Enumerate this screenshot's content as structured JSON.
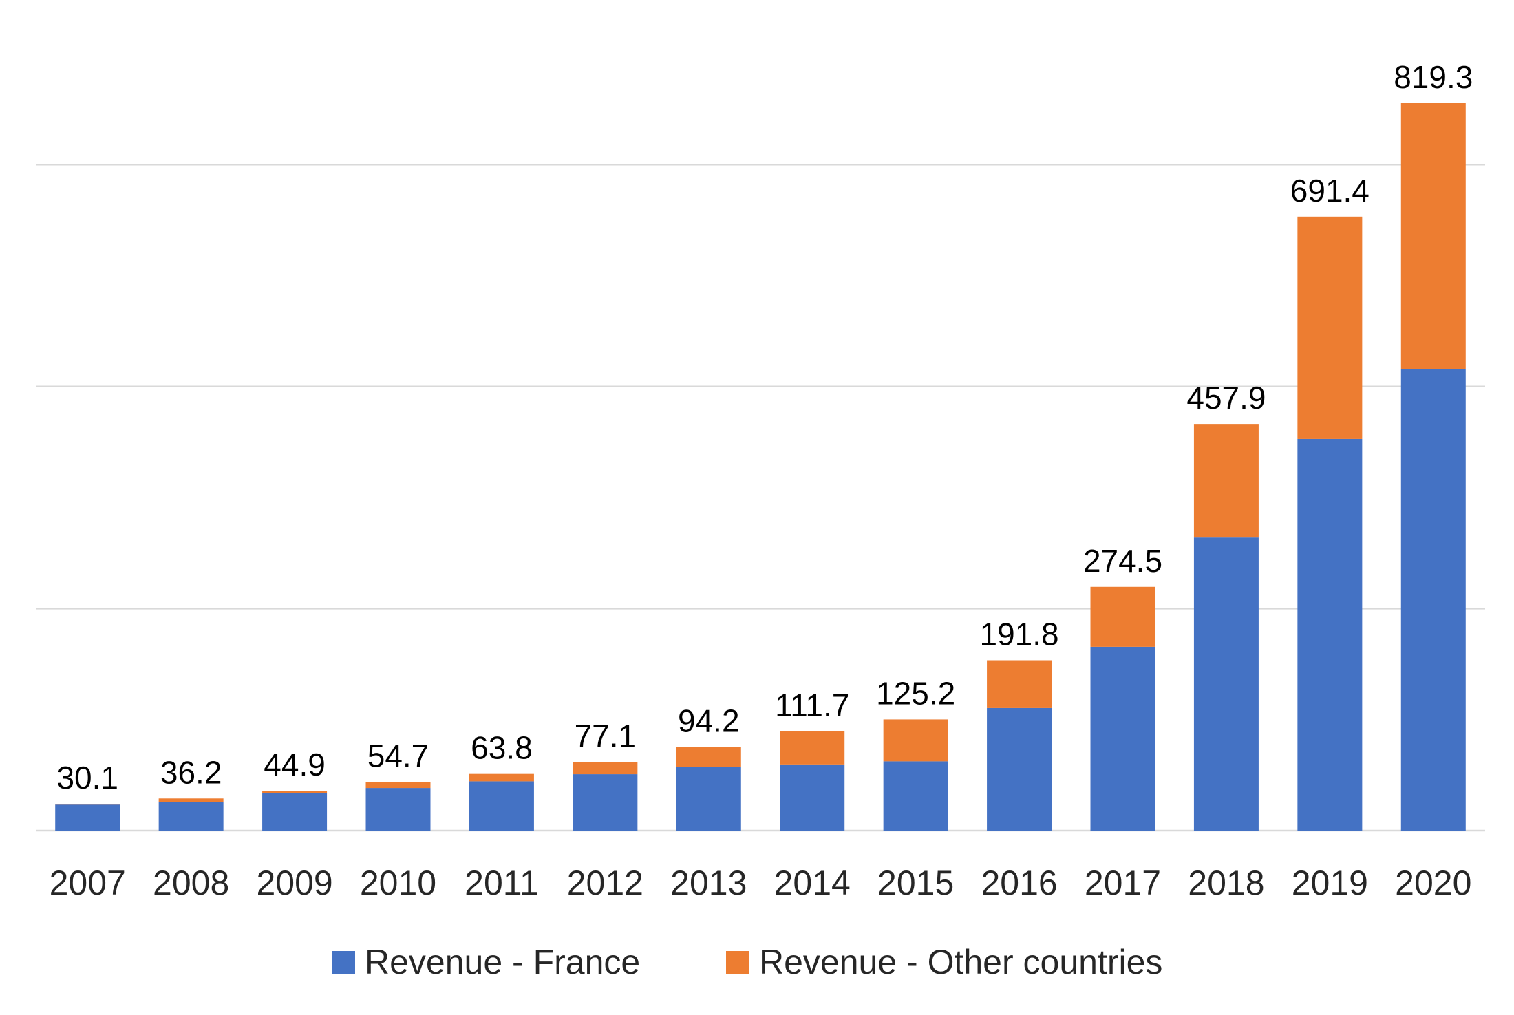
{
  "chart_data": {
    "type": "bar",
    "stacked": true,
    "categories": [
      "2007",
      "2008",
      "2009",
      "2010",
      "2011",
      "2012",
      "2013",
      "2014",
      "2015",
      "2016",
      "2017",
      "2018",
      "2019",
      "2020"
    ],
    "series": [
      {
        "name": "Revenue - France",
        "color": "#4472C4",
        "values": [
          29.3,
          32.5,
          42.0,
          48.0,
          55.5,
          63.5,
          71.5,
          74.5,
          78.0,
          138.0,
          207.0,
          330.0,
          441.0,
          520.0
        ]
      },
      {
        "name": "Revenue - Other countries",
        "color": "#ED7D31",
        "values": [
          0.8,
          3.7,
          2.9,
          6.7,
          8.3,
          13.6,
          22.7,
          37.2,
          47.2,
          53.8,
          67.5,
          127.9,
          250.4,
          299.3
        ]
      }
    ],
    "totals": [
      "30.1",
      "36.2",
      "44.9",
      "54.7",
      "63.8",
      "77.1",
      "94.2",
      "111.7",
      "125.2",
      "191.8",
      "274.5",
      "457.9",
      "691.4",
      "819.3"
    ],
    "ylim": [
      0,
      900
    ],
    "gridlines": [
      0,
      250,
      500,
      750
    ],
    "grid": true,
    "legend_position": "bottom"
  }
}
